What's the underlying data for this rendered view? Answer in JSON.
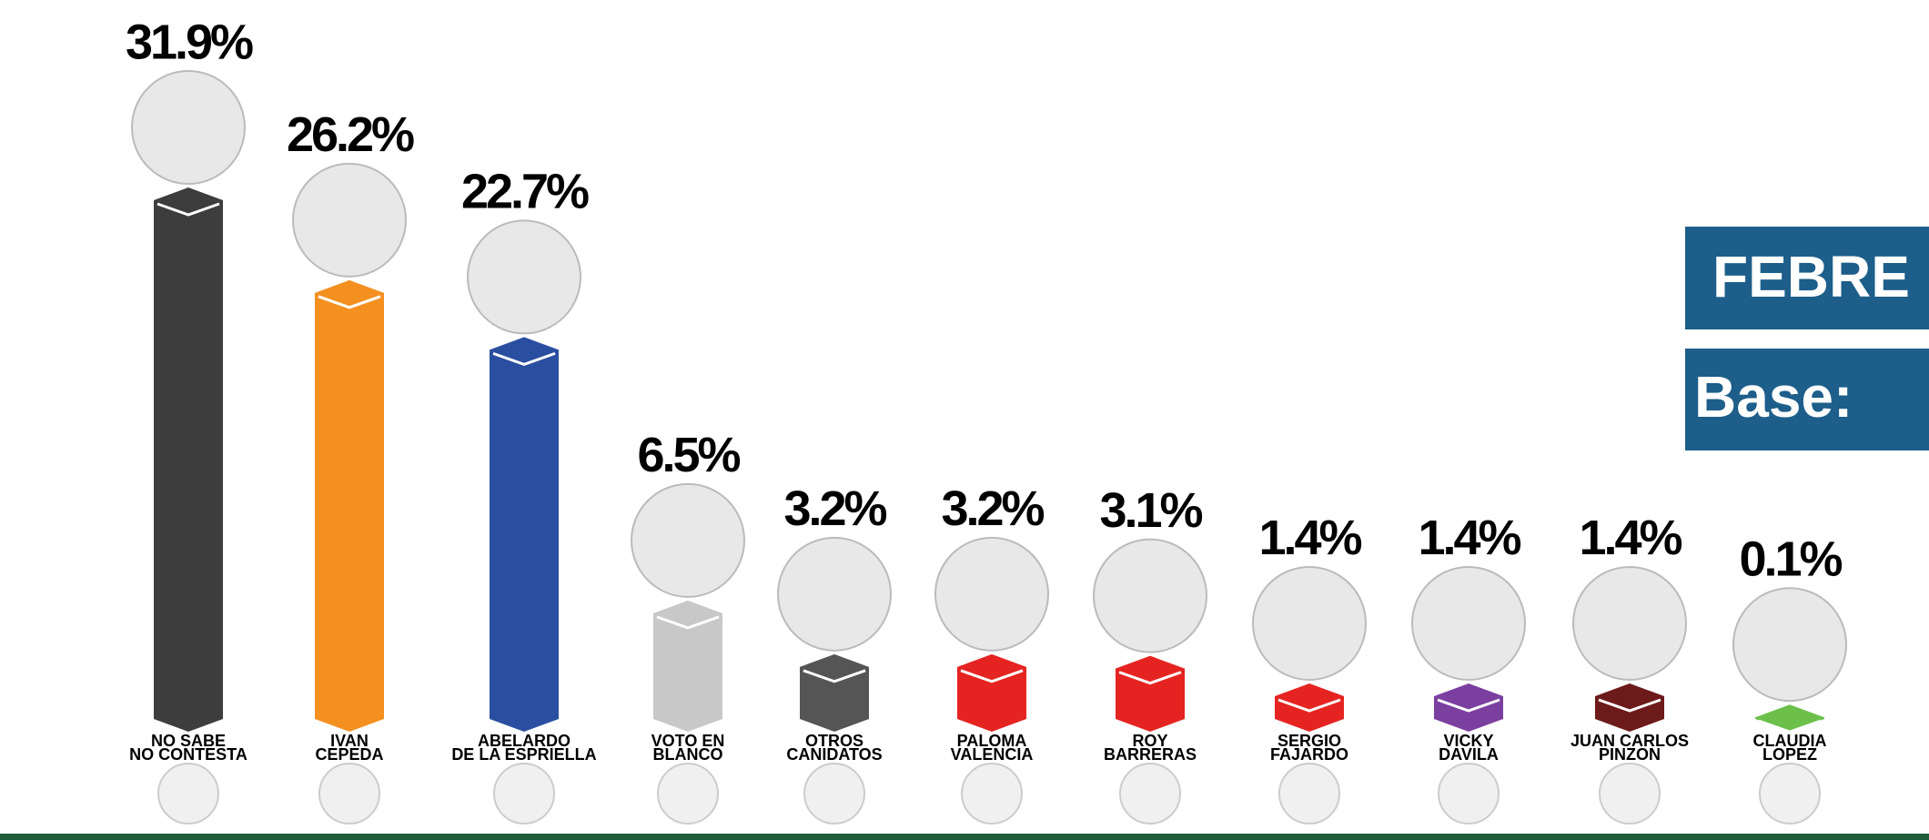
{
  "chart_data": {
    "type": "bar",
    "header": [
      "FEBRE",
      "Base:"
    ],
    "categories": [
      [
        "NO SABE",
        "NO CONTESTA"
      ],
      [
        "IVAN",
        "CEPEDA"
      ],
      [
        "ABELARDO",
        "DE LA ESPRIELLA"
      ],
      [
        "VOTO EN",
        "BLANCO"
      ],
      [
        "OTROS",
        "CANIDATOS"
      ],
      [
        "PALOMA",
        "VALENCIA"
      ],
      [
        "ROY",
        "BARRERAS"
      ],
      [
        "SERGIO",
        "FAJARDO"
      ],
      [
        "VICKY",
        "DAVILA"
      ],
      [
        "JUAN CARLOS",
        "PINZON"
      ],
      [
        "CLAUDIA",
        "LOPEZ"
      ]
    ],
    "values": [
      31.9,
      26.2,
      22.7,
      6.5,
      3.2,
      3.2,
      3.1,
      1.4,
      1.4,
      1.4,
      0.1
    ],
    "value_labels": [
      "31.9%",
      "26.2%",
      "22.7%",
      "6.5%",
      "3.2%",
      "3.2%",
      "3.1%",
      "1.4%",
      "1.4%",
      "1.4%",
      "0.1%"
    ],
    "colors": [
      "#3d3d3d",
      "#f39020",
      "#2b4fa0",
      "#c8c8c8",
      "#555555",
      "#e52421",
      "#e52421",
      "#e52421",
      "#7b3fa0",
      "#6d1a1a",
      "#6cc04a",
      "#d6d6d6"
    ]
  }
}
